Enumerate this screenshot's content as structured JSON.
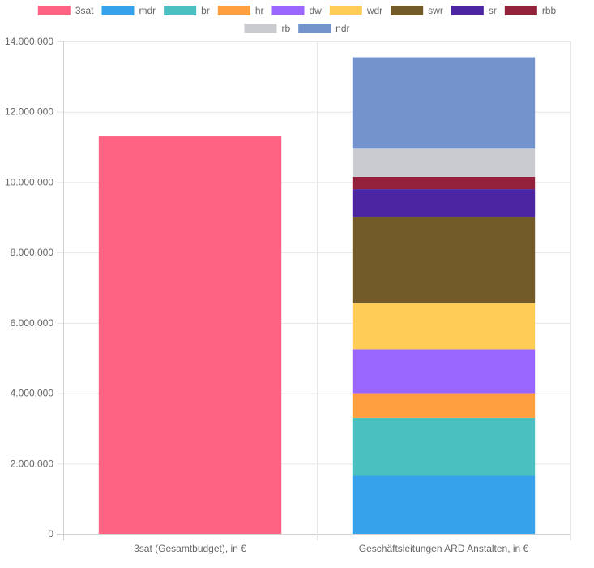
{
  "chart_data": {
    "type": "bar",
    "stacked": true,
    "categories": [
      "3sat (Gesamtbudget), in €",
      "Geschäftsleitungen ARD Anstalten, in €"
    ],
    "ylim": [
      0,
      14000000
    ],
    "yticks": [
      0,
      2000000,
      4000000,
      6000000,
      8000000,
      10000000,
      12000000,
      14000000
    ],
    "ytick_labels": [
      "0",
      "2.000.000",
      "4.000.000",
      "6.000.000",
      "8.000.000",
      "10.000.000",
      "12.000.000",
      "14.000.000"
    ],
    "legend_position": "top",
    "grid": true,
    "series": [
      {
        "name": "3sat",
        "color": "#ff6384",
        "values": [
          11300000,
          0
        ]
      },
      {
        "name": "mdr",
        "color": "#36a2eb",
        "values": [
          0,
          1650000
        ]
      },
      {
        "name": "br",
        "color": "#4bc0c0",
        "values": [
          0,
          1650000
        ]
      },
      {
        "name": "hr",
        "color": "#ff9f40",
        "values": [
          0,
          700000
        ]
      },
      {
        "name": "dw",
        "color": "#9966ff",
        "values": [
          0,
          1250000
        ]
      },
      {
        "name": "wdr",
        "color": "#ffcd56",
        "values": [
          0,
          1300000
        ]
      },
      {
        "name": "swr",
        "color": "#735a29",
        "values": [
          0,
          2450000
        ]
      },
      {
        "name": "sr",
        "color": "#4b25a2",
        "values": [
          0,
          800000
        ]
      },
      {
        "name": "rbb",
        "color": "#93213b",
        "values": [
          0,
          350000
        ]
      },
      {
        "name": "rb",
        "color": "#c9cbcf",
        "values": [
          0,
          800000
        ]
      },
      {
        "name": "ndr",
        "color": "#7492cc",
        "values": [
          0,
          2600000
        ]
      }
    ]
  }
}
